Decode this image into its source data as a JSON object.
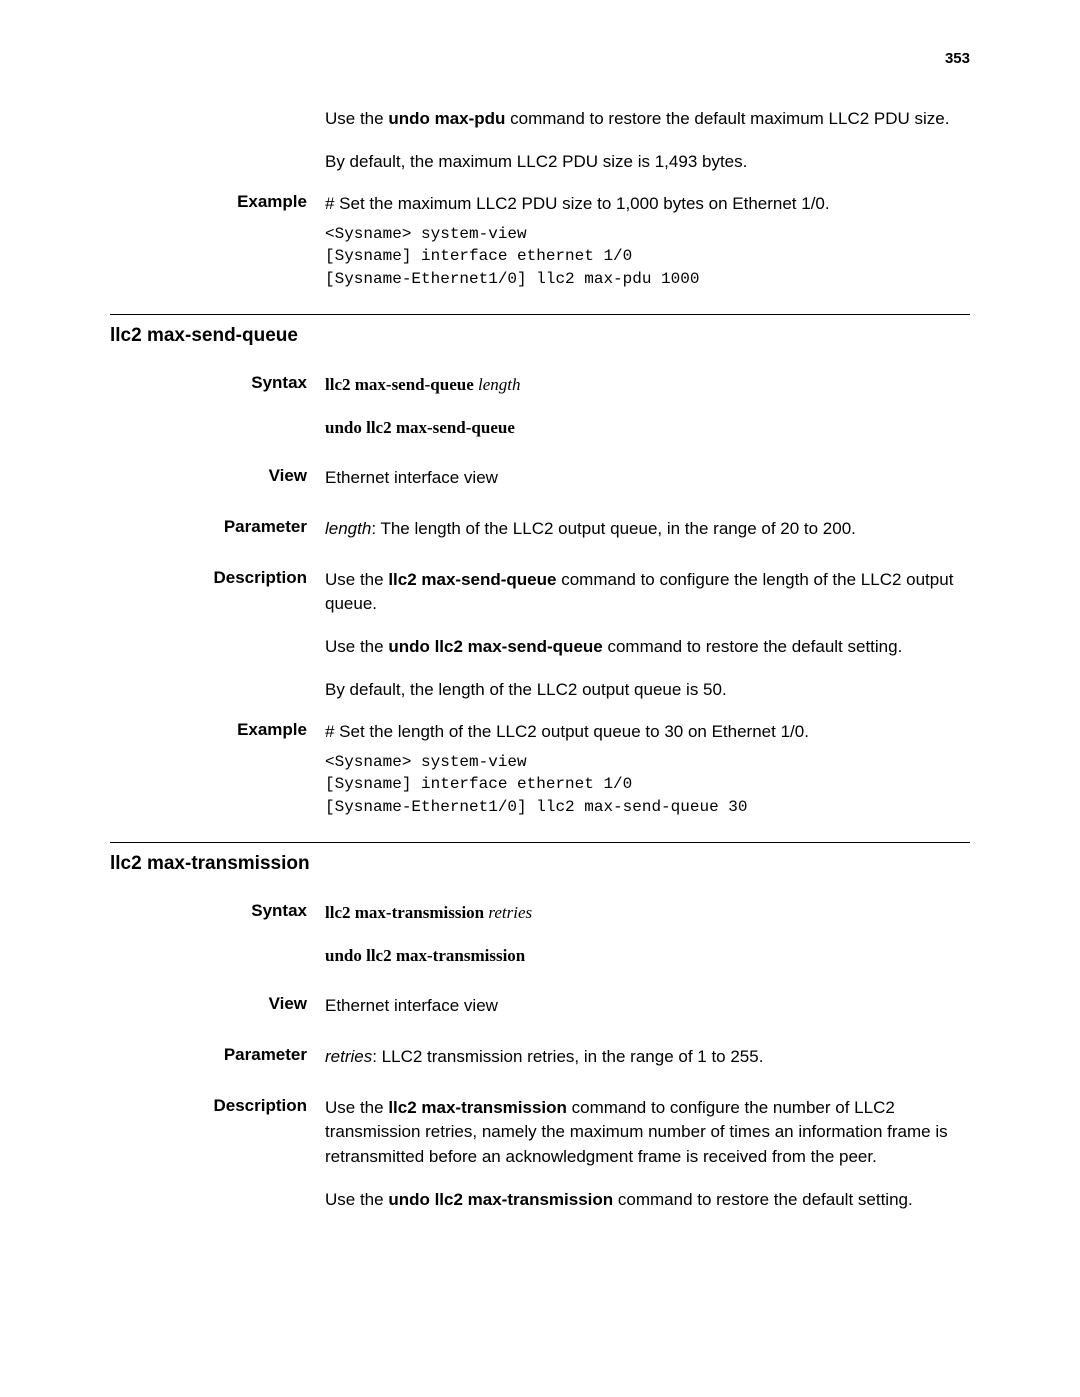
{
  "page_number": "353",
  "intro": {
    "p1_pre": "Use the ",
    "p1_bold": "undo max-pdu",
    "p1_post": " command to restore the default maximum LLC2 PDU size.",
    "p2": "By default, the maximum LLC2 PDU size is 1,493 bytes."
  },
  "intro_example": {
    "label": "Example",
    "desc": "# Set the maximum LLC2 PDU size to 1,000 bytes on Ethernet 1/0.",
    "code": "<Sysname> system-view\n[Sysname] interface ethernet 1/0\n[Sysname-Ethernet1/0] llc2 max-pdu 1000"
  },
  "sec1": {
    "title": "llc2 max-send-queue",
    "syntax_label": "Syntax",
    "syntax_cmd1_bold": "llc2 max-send-queue",
    "syntax_cmd1_italic": " length",
    "syntax_cmd2_bold": "undo llc2 max-send-queue",
    "view_label": "View",
    "view_text": "Ethernet interface view",
    "param_label": "Parameter",
    "param_italic": "length",
    "param_text": ": The length of the LLC2 output queue, in the range of 20 to 200.",
    "desc_label": "Description",
    "desc_p1_pre": "Use the ",
    "desc_p1_bold": "llc2 max-send-queue",
    "desc_p1_post": " command to configure the length of the LLC2 output queue.",
    "desc_p2_pre": "Use the ",
    "desc_p2_bold": "undo llc2 max-send-queue",
    "desc_p2_post": " command to restore the default setting.",
    "desc_p3": "By default, the length of the LLC2 output queue is 50.",
    "ex_label": "Example",
    "ex_desc": "# Set the length of the LLC2 output queue to 30 on Ethernet 1/0.",
    "ex_code": "<Sysname> system-view\n[Sysname] interface ethernet 1/0\n[Sysname-Ethernet1/0] llc2 max-send-queue 30"
  },
  "sec2": {
    "title": "llc2 max-transmission",
    "syntax_label": "Syntax",
    "syntax_cmd1_bold": "llc2 max-transmission",
    "syntax_cmd1_italic": " retries",
    "syntax_cmd2_bold": "undo llc2 max-transmission",
    "view_label": "View",
    "view_text": "Ethernet interface view",
    "param_label": "Parameter",
    "param_italic": "retries",
    "param_text": ": LLC2 transmission retries, in the range of 1 to 255.",
    "desc_label": "Description",
    "desc_p1_pre": "Use the ",
    "desc_p1_bold": "llc2 max-transmission",
    "desc_p1_post": " command to configure the number of LLC2 transmission retries, namely the maximum number of times an information frame is retransmitted before an acknowledgment frame is received from the peer.",
    "desc_p2_pre": "Use the ",
    "desc_p2_bold": "undo llc2 max-transmission",
    "desc_p2_post": " command to restore the default setting."
  }
}
